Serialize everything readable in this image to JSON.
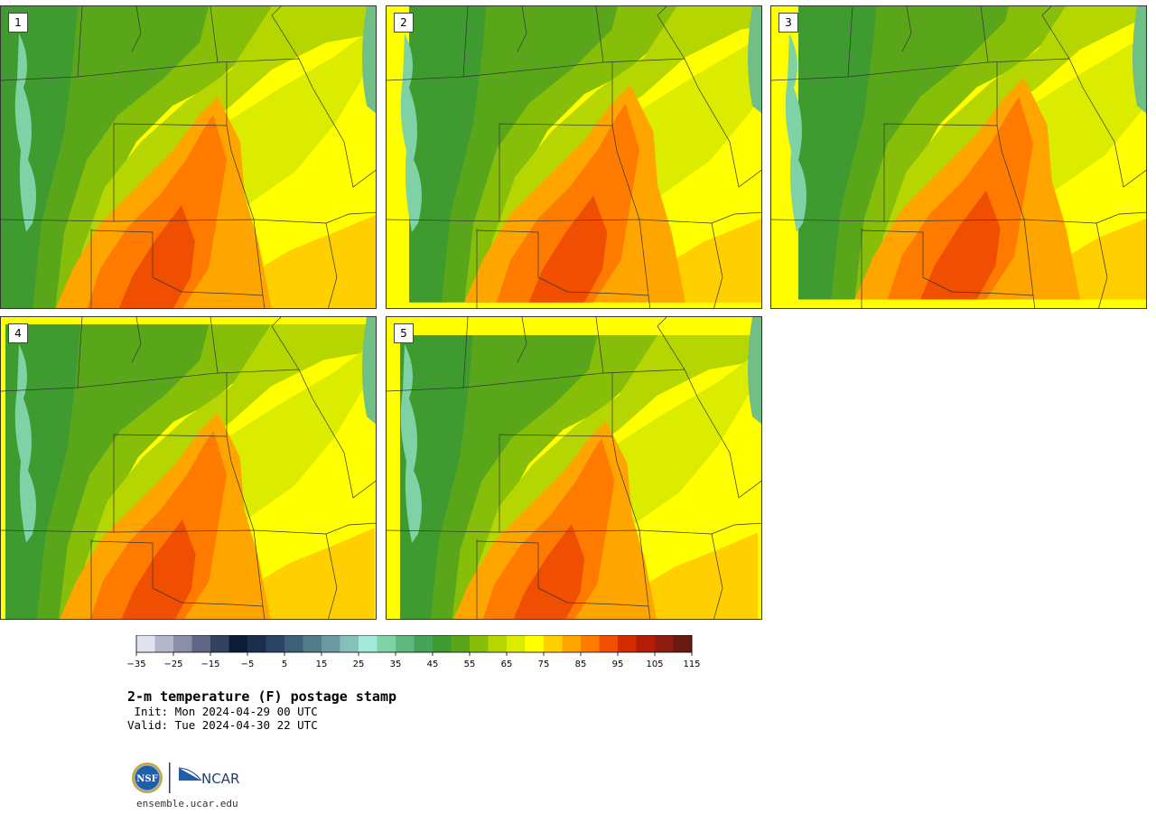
{
  "panels": [
    {
      "label": "1",
      "seed": 1
    },
    {
      "label": "2",
      "seed": 2
    },
    {
      "label": "3",
      "seed": 3
    },
    {
      "label": "4",
      "seed": 4
    },
    {
      "label": "5",
      "seed": 5
    }
  ],
  "colorbar": {
    "colors": [
      "#e1e4ee",
      "#b4b6c9",
      "#8a8ea6",
      "#5f6684",
      "#344160",
      "#0f1c38",
      "#1a2e4e",
      "#2b4664",
      "#3e5f78",
      "#537c8b",
      "#6b9ba0",
      "#86c0bb",
      "#a3e8d8",
      "#7fd1a6",
      "#5fb880",
      "#45a35a",
      "#3f9b2f",
      "#5aa61b",
      "#86be0a",
      "#b5d600",
      "#dcec00",
      "#ffff00",
      "#ffcf00",
      "#ffa500",
      "#ff7b00",
      "#f04e00",
      "#d42c00",
      "#b31d08",
      "#8f1c10",
      "#6b1a10"
    ],
    "tick_labels": [
      "−35",
      "−25",
      "−15",
      "−5",
      "5",
      "15",
      "25",
      "35",
      "45",
      "55",
      "65",
      "75",
      "85",
      "95",
      "105",
      "115"
    ]
  },
  "title": "2-m temperature (F) postage stamp",
  "init": " Init: Mon 2024-04-29 00 UTC",
  "valid": "Valid: Tue 2024-04-30 22 UTC",
  "logos": {
    "left": "NSF",
    "right": "NCAR"
  },
  "site": "ensemble.ucar.edu"
}
